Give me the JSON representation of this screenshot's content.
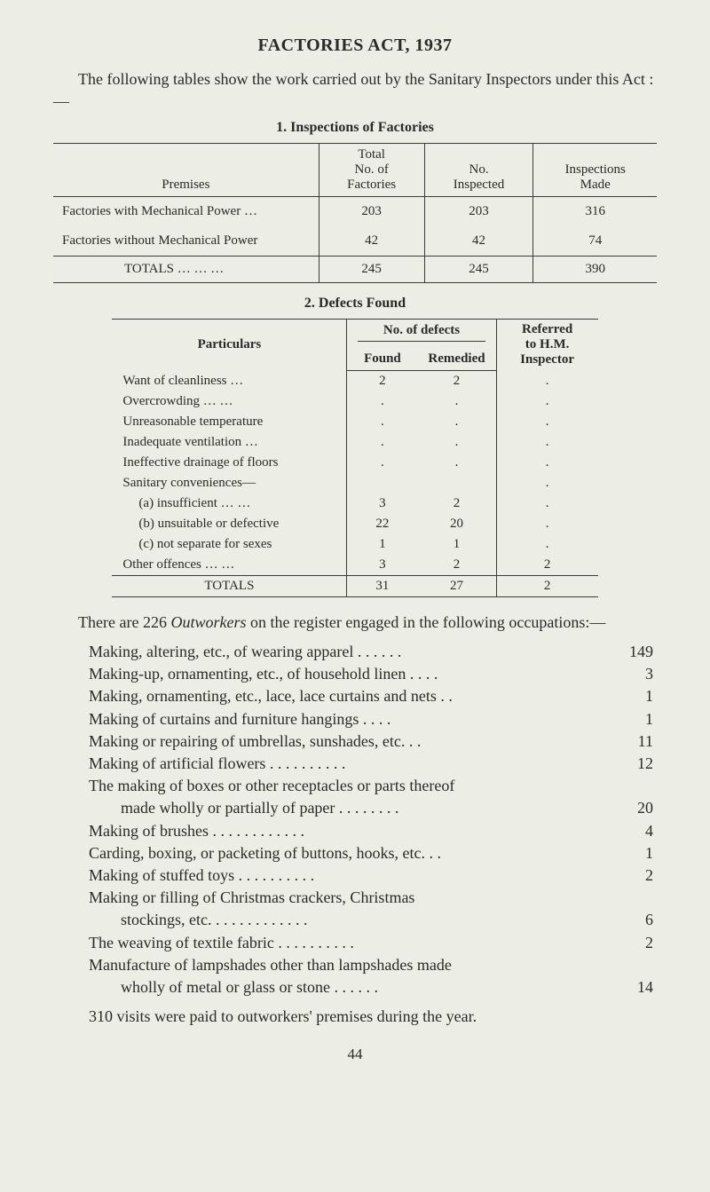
{
  "heading": "FACTORIES ACT, 1937",
  "intro": "The following tables show the work carried out by the Sanitary Inspectors under this Act :—",
  "table1": {
    "caption": "1. Inspections of Factories",
    "headers": {
      "premises": "Premises",
      "total": "Total\nNo. of\nFactories",
      "inspected": "No.\nInspected",
      "made": "Inspections\nMade"
    },
    "rows": [
      {
        "label": "Factories with Mechanical Power  …",
        "total": "203",
        "inspected": "203",
        "made": "316"
      },
      {
        "label": "Factories without Mechanical Power",
        "total": "42",
        "inspected": "42",
        "made": "74"
      }
    ],
    "totals": {
      "label": "TOTALS        …      …      …",
      "total": "245",
      "inspected": "245",
      "made": "390"
    }
  },
  "table2": {
    "caption": "2. Defects Found",
    "headers": {
      "particulars": "Particulars",
      "defects": "No. of defects",
      "found": "Found",
      "remedied": "Remedied",
      "referred": "Referred\nto  H.M.\nInspector"
    },
    "rows": [
      {
        "label": "Want of cleanliness          …",
        "found": "2",
        "remedied": "2",
        "ref": "."
      },
      {
        "label": "Overcrowding        …        …",
        "found": ".",
        "remedied": ".",
        "ref": "."
      },
      {
        "label": "Unreasonable temperature",
        "found": ".",
        "remedied": ".",
        "ref": "."
      },
      {
        "label": "Inadequate ventilation   …",
        "found": ".",
        "remedied": ".",
        "ref": "."
      },
      {
        "label": "Ineffective drainage of floors",
        "found": ".",
        "remedied": ".",
        "ref": "."
      },
      {
        "label": "Sanitary conveniences—",
        "found": "",
        "remedied": "",
        "ref": "."
      },
      {
        "label": "(a) insufficient     …      …",
        "indent": true,
        "found": "3",
        "remedied": "2",
        "ref": "."
      },
      {
        "label": "(b) unsuitable or defective",
        "indent": true,
        "found": "22",
        "remedied": "20",
        "ref": "."
      },
      {
        "label": "(c) not separate for sexes",
        "indent": true,
        "found": "1",
        "remedied": "1",
        "ref": "."
      },
      {
        "label": "Other offences       …       …",
        "found": "3",
        "remedied": "2",
        "ref": "2"
      }
    ],
    "totals": {
      "label": "TOTALS",
      "found": "31",
      "remedied": "27",
      "ref": "2"
    }
  },
  "outworkers_intro_a": "There are 226 ",
  "outworkers_intro_italic": "Outworkers",
  "outworkers_intro_b": " on the register engaged in the following occupations:—",
  "occupations": [
    {
      "label": "Making, altering, etc., of wearing apparel  . .        . .        . .",
      "n": "149"
    },
    {
      "label": "Making-up, ornamenting, etc., of household linen . .        . .",
      "n": "3"
    },
    {
      "label": "Making, ornamenting, etc., lace, lace curtains and nets   . .",
      "n": "1"
    },
    {
      "label": "Making of curtains and furniture hangings           . .        . .",
      "n": "1"
    },
    {
      "label": "Making or repairing of umbrellas, sunshades, etc.        . .",
      "n": "11"
    },
    {
      "label": "Making of artificial flowers   . .        . .        . .        . .        . .",
      "n": "12"
    },
    {
      "label": "The making of boxes or other receptacles or parts thereof",
      "n": ""
    },
    {
      "label": "made wholly or partially of paper . .        . .        . .        . .",
      "n": "20",
      "cont": true
    },
    {
      "label": "Making of brushes      . .        . .        . .        . .        . .        . .",
      "n": "4"
    },
    {
      "label": "Carding, boxing, or packeting of buttons, hooks, etc.      . .",
      "n": "1"
    },
    {
      "label": "Making of stuffed toys          . .        . .        . .        . .        . .",
      "n": "2"
    },
    {
      "label": "Making  or  filling  of  Christmas  crackers,  Christmas",
      "n": ""
    },
    {
      "label": "stockings, etc.          . .        . .        . .        . .        . .        . .",
      "n": "6",
      "cont": true
    },
    {
      "label": "The weaving of textile fabric . .        . .        . .        . .        . .",
      "n": "2"
    },
    {
      "label": "Manufacture of lampshades other than lampshades made",
      "n": ""
    },
    {
      "label": "wholly of metal or glass or stone              . .        . .        . .",
      "n": "14",
      "cont": true
    }
  ],
  "visits": "310 visits were paid to outworkers' premises during the year.",
  "pagenum": "44"
}
